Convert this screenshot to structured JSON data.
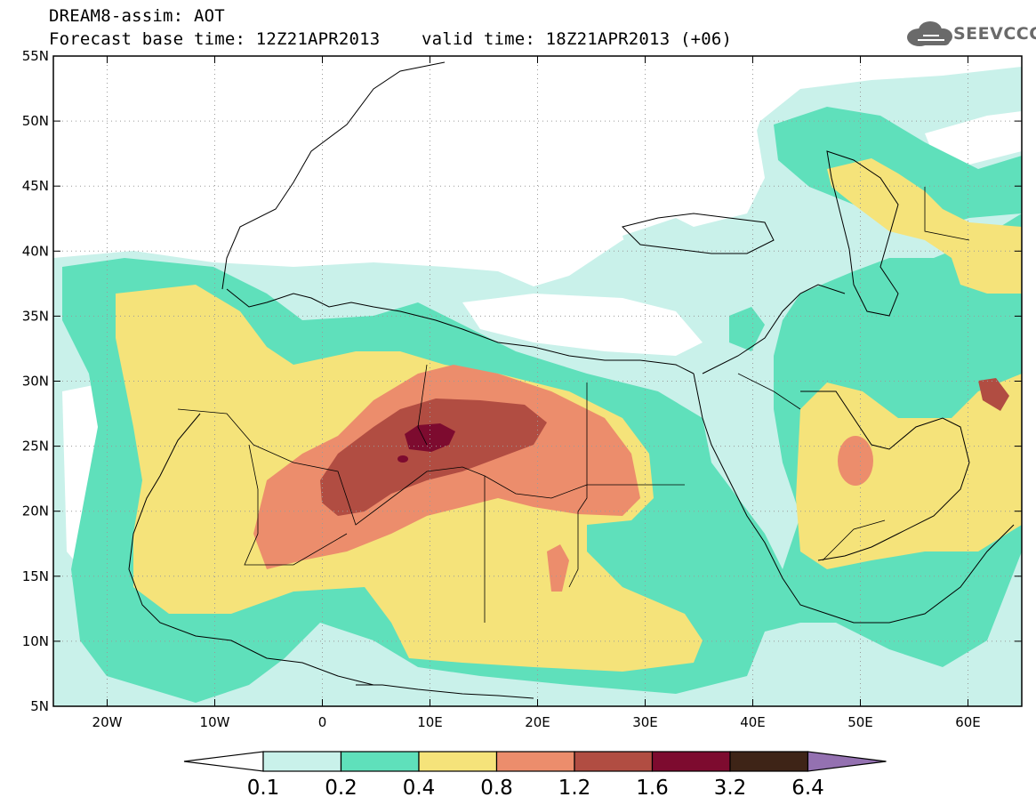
{
  "header": {
    "line1": "DREAM8-assim: AOT",
    "line2": "Forecast base time: 12Z21APR2013    valid time: 18Z21APR2013 (+06)"
  },
  "logo": {
    "text": "SEEVCCC",
    "icon": "cloud-icon"
  },
  "map": {
    "lon_range": [
      -25,
      65
    ],
    "lat_range": [
      5,
      55
    ],
    "gridlines": true,
    "lon_ticks": [
      {
        "value": -20,
        "label": "20W"
      },
      {
        "value": -10,
        "label": "10W"
      },
      {
        "value": 0,
        "label": "0"
      },
      {
        "value": 10,
        "label": "10E"
      },
      {
        "value": 20,
        "label": "20E"
      },
      {
        "value": 30,
        "label": "30E"
      },
      {
        "value": 40,
        "label": "40E"
      },
      {
        "value": 50,
        "label": "50E"
      },
      {
        "value": 60,
        "label": "60E"
      }
    ],
    "lat_ticks": [
      {
        "value": 55,
        "label": "55N"
      },
      {
        "value": 50,
        "label": "50N"
      },
      {
        "value": 45,
        "label": "45N"
      },
      {
        "value": 40,
        "label": "40N"
      },
      {
        "value": 35,
        "label": "35N"
      },
      {
        "value": 30,
        "label": "30N"
      },
      {
        "value": 25,
        "label": "25N"
      },
      {
        "value": 20,
        "label": "20N"
      },
      {
        "value": 15,
        "label": "15N"
      },
      {
        "value": 10,
        "label": "10N"
      },
      {
        "value": 5,
        "label": "5N"
      }
    ]
  },
  "colorbar": {
    "bins": [
      {
        "color": "#c9f1ea"
      },
      {
        "color": "#5fe0bb"
      },
      {
        "color": "#f5e37a"
      },
      {
        "color": "#ec8d6c"
      },
      {
        "color": "#b14d42"
      },
      {
        "color": "#7d0b2f"
      },
      {
        "color": "#3e2417"
      }
    ],
    "under_color": "#ffffff",
    "over_color": "#9471b1",
    "labels": [
      "0.1",
      "0.2",
      "0.4",
      "0.8",
      "1.2",
      "1.6",
      "3.2",
      "6.4"
    ]
  }
}
